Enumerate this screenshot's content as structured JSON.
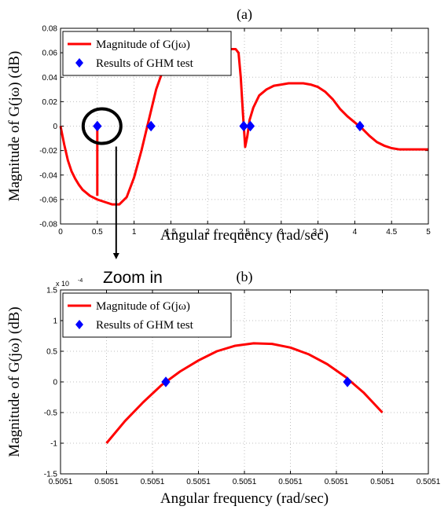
{
  "colors": {
    "curve": "#ff0000",
    "marker": "#0000ff",
    "axis": "#000000",
    "grid": "#bfbfbf",
    "annotation": "#000000"
  },
  "annotations": {
    "zoom_label": "Zoom in"
  },
  "chart_data": [
    {
      "type": "line",
      "title": "(a)",
      "xlabel": "Angular frequency (rad/sec)",
      "ylabel": "Magnitude of G(jω) (dB)",
      "xlim": [
        0,
        5
      ],
      "ylim": [
        -0.08,
        0.08
      ],
      "x_ticks": [
        0,
        0.5,
        1,
        1.5,
        2,
        2.5,
        3,
        3.5,
        4,
        4.5,
        5
      ],
      "x_tick_labels": [
        "0",
        "0.5",
        "1",
        "1.5",
        "2",
        "2.5",
        "3",
        "3.5",
        "4",
        "4.5",
        "5"
      ],
      "y_ticks": [
        -0.08,
        -0.06,
        -0.04,
        -0.02,
        0,
        0.02,
        0.04,
        0.06,
        0.08
      ],
      "y_tick_labels": [
        "-0.08",
        "-0.06",
        "-0.04",
        "-0.02",
        "0",
        "0.02",
        "0.04",
        "0.06",
        "0.08"
      ],
      "grid": true,
      "legend_position": "top-left",
      "series": [
        {
          "name": "Magnitude of G(jω)",
          "style": "line",
          "x": [
            0,
            0.05,
            0.1,
            0.15,
            0.2,
            0.25,
            0.3,
            0.4,
            0.5,
            0.6,
            0.7,
            0.8,
            0.9,
            1.0,
            1.1,
            1.2,
            1.3,
            1.4,
            1.5,
            1.6,
            1.7,
            1.8,
            1.9,
            2.0,
            2.1,
            2.2,
            2.3,
            2.35,
            2.38,
            2.42,
            2.45,
            2.48,
            2.51,
            2.54,
            2.57,
            2.62,
            2.7,
            2.8,
            2.9,
            3.0,
            3.1,
            3.2,
            3.3,
            3.4,
            3.5,
            3.6,
            3.7,
            3.8,
            3.9,
            4.0,
            4.1,
            4.2,
            4.3,
            4.4,
            4.5,
            4.6,
            4.7,
            4.8,
            4.9,
            5.0
          ],
          "y": [
            0,
            -0.015,
            -0.028,
            -0.037,
            -0.043,
            -0.048,
            -0.052,
            -0.057,
            -0.06,
            -0.062,
            -0.064,
            -0.064,
            -0.058,
            -0.042,
            -0.02,
            0.005,
            0.03,
            0.047,
            0.056,
            0.06,
            0.062,
            0.063,
            0.063,
            0.063,
            0.063,
            0.063,
            0.063,
            0.063,
            0.063,
            0.06,
            0.04,
            0.01,
            -0.017,
            -0.008,
            0.005,
            0.015,
            0.025,
            0.03,
            0.033,
            0.034,
            0.035,
            0.035,
            0.035,
            0.034,
            0.032,
            0.028,
            0.022,
            0.014,
            0.008,
            0.003,
            -0.002,
            -0.008,
            -0.013,
            -0.016,
            -0.018,
            -0.019,
            -0.019,
            -0.019,
            -0.019,
            -0.019
          ]
        },
        {
          "name": "Results of GHM test",
          "style": "marker",
          "x": [
            0.5,
            1.23,
            2.49,
            2.58,
            4.07
          ],
          "y": [
            0,
            0,
            0,
            0,
            0
          ]
        }
      ],
      "drop_line": {
        "x": 0.5,
        "y_from": 0,
        "y_to": -0.057
      }
    },
    {
      "type": "line",
      "title": "(b)",
      "xlabel": "Angular frequency (rad/sec)",
      "ylabel": "Magnitude of G(jω) (dB)",
      "y_scale_label": "x 10",
      "y_scale_exponent": "-4",
      "xlim": [
        0,
        8
      ],
      "ylim": [
        -1.5,
        1.5
      ],
      "x_ticks": [
        0,
        1,
        2,
        3,
        4,
        5,
        6,
        7,
        8
      ],
      "x_tick_labels": [
        "0.5051",
        "0.5051",
        "0.5051",
        "0.5051",
        "0.5051",
        "0.5051",
        "0.5051",
        "0.5051",
        "0.5051"
      ],
      "y_ticks": [
        -1.5,
        -1,
        -0.5,
        0,
        0.5,
        1,
        1.5
      ],
      "y_tick_labels": [
        "-1.5",
        "-1",
        "-0.5",
        "0",
        "0.5",
        "1",
        "1.5"
      ],
      "grid": true,
      "legend_position": "top-left",
      "series": [
        {
          "name": "Magnitude of G(jω)",
          "style": "line",
          "x": [
            1.0,
            1.4,
            1.8,
            2.2,
            2.6,
            3.0,
            3.4,
            3.8,
            4.2,
            4.6,
            5.0,
            5.4,
            5.8,
            6.2,
            6.6,
            7.0
          ],
          "y": [
            -1.0,
            -0.64,
            -0.33,
            -0.05,
            0.17,
            0.35,
            0.5,
            0.59,
            0.63,
            0.62,
            0.56,
            0.45,
            0.29,
            0.08,
            -0.18,
            -0.5
          ]
        },
        {
          "name": "Results of GHM test",
          "style": "marker",
          "x": [
            2.29,
            6.24
          ],
          "y": [
            0,
            0
          ]
        }
      ]
    }
  ]
}
